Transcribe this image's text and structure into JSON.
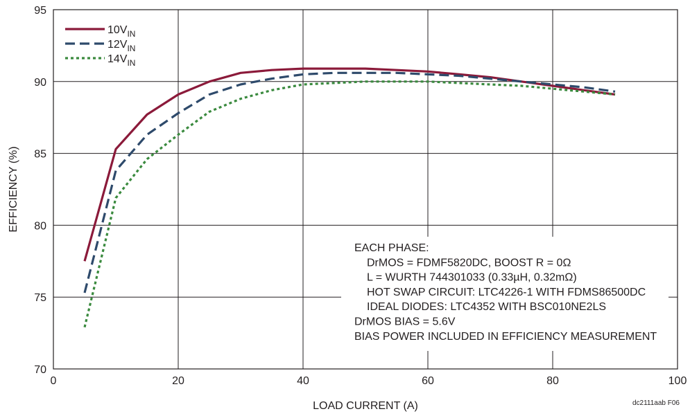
{
  "chart_data": {
    "type": "line",
    "xlabel": "LOAD CURRENT (A)",
    "ylabel": "EFFICIENCY (%)",
    "xlim": [
      0,
      100
    ],
    "ylim": [
      70,
      95
    ],
    "xticks": [
      "0",
      "20",
      "40",
      "60",
      "80",
      "100"
    ],
    "yticks": [
      "70",
      "75",
      "80",
      "85",
      "90",
      "95"
    ],
    "xtick_values": [
      0,
      20,
      40,
      60,
      80,
      100
    ],
    "ytick_values": [
      70,
      75,
      80,
      85,
      90,
      95
    ],
    "grid": true,
    "legend_position": "top-left",
    "series": [
      {
        "name": "10V",
        "name_sub": "IN",
        "color": "#8b1a3a",
        "style": "solid",
        "x": [
          5,
          10,
          15,
          20,
          25,
          30,
          35,
          40,
          45,
          50,
          55,
          60,
          65,
          70,
          75,
          80,
          85,
          90
        ],
        "y": [
          77.5,
          85.3,
          87.7,
          89.1,
          90.0,
          90.6,
          90.8,
          90.9,
          90.9,
          90.9,
          90.8,
          90.7,
          90.5,
          90.3,
          90.0,
          89.7,
          89.4,
          89.1
        ]
      },
      {
        "name": "12V",
        "name_sub": "IN",
        "color": "#2e4a6b",
        "style": "dashed",
        "x": [
          5,
          10,
          15,
          20,
          25,
          30,
          35,
          40,
          45,
          50,
          55,
          60,
          65,
          70,
          75,
          80,
          85,
          90
        ],
        "y": [
          75.3,
          83.8,
          86.3,
          87.8,
          89.1,
          89.8,
          90.2,
          90.5,
          90.6,
          90.6,
          90.6,
          90.5,
          90.4,
          90.2,
          90.0,
          89.8,
          89.6,
          89.3
        ]
      },
      {
        "name": "14V",
        "name_sub": "IN",
        "color": "#3a8a3e",
        "style": "dotted",
        "x": [
          5,
          10,
          15,
          20,
          25,
          30,
          35,
          40,
          45,
          50,
          55,
          60,
          65,
          70,
          75,
          80,
          85,
          90
        ],
        "y": [
          72.9,
          81.9,
          84.6,
          86.3,
          87.9,
          88.8,
          89.4,
          89.8,
          89.9,
          90.0,
          90.0,
          90.0,
          89.9,
          89.8,
          89.7,
          89.5,
          89.3,
          89.1
        ]
      }
    ],
    "annotation_lines": [
      "EACH PHASE:",
      "DrMOS = FDMF5820DC, BOOST R = 0Ω",
      "L = WURTH 744301033 (0.33µH, 0.32mΩ)",
      "HOT SWAP CIRCUIT: LTC4226-1 WITH FDMS86500DC",
      "IDEAL DIODES: LTC4352 WITH BSC010NE2LS",
      "DrMOS BIAS = 5.6V",
      "BIAS POWER INCLUDED IN EFFICIENCY MEASUREMENT"
    ],
    "annotation_indent": [
      false,
      true,
      true,
      true,
      true,
      false,
      false
    ],
    "figure_id": "dc2111aab F06"
  }
}
